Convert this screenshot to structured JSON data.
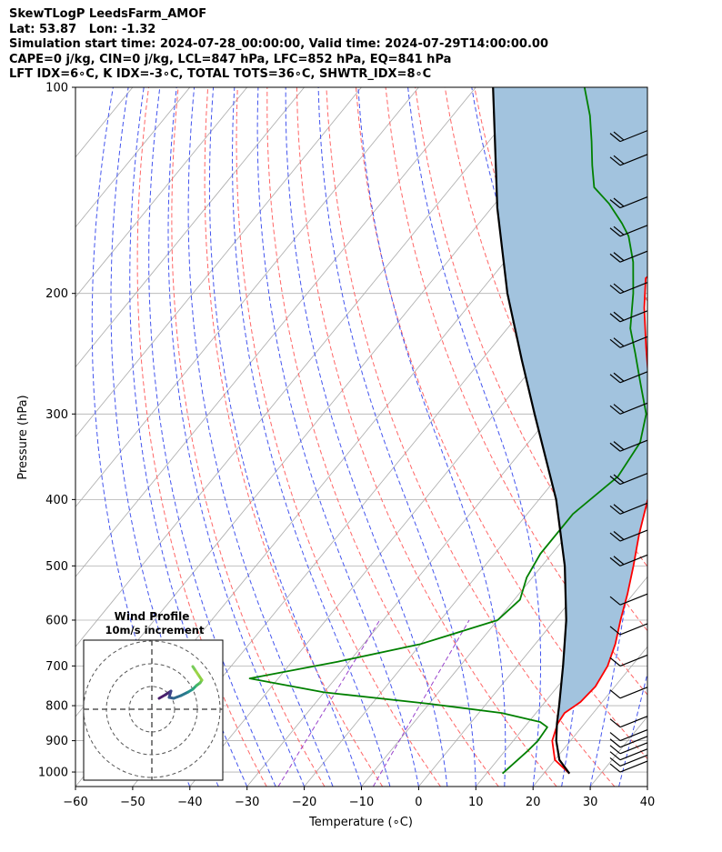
{
  "header": {
    "line1": "SkewTLogP LeedsFarm_AMOF",
    "line2": "Lat: 53.87   Lon: -1.32",
    "line3": "Simulation start time: 2024-07-28_00:00:00, Valid time: 2024-07-29T14:00:00.00",
    "line4": "CAPE=0 j/kg, CIN=0 j/kg, LCL=847 hPa, LFC=852 hPa, EQ=841 hPa",
    "line5": "LFT IDX=6∘C, K IDX=-3∘C, TOTAL TOTS=36∘C, SHWTR_IDX=8∘C"
  },
  "chart_data": {
    "type": "skew-t log-p",
    "xlabel": "Temperature (∘C)",
    "ylabel": "Pressure (hPa)",
    "xlim": [
      -60,
      40
    ],
    "ylim": [
      1050,
      100
    ],
    "y_scale": "log",
    "grid": true,
    "x_ticks": [
      -60,
      -50,
      -40,
      -30,
      -20,
      -10,
      0,
      10,
      20,
      30,
      40
    ],
    "y_ticks": [
      100,
      200,
      300,
      400,
      500,
      600,
      700,
      800,
      900,
      1000
    ],
    "temperature": [
      [
        1005,
        24.5
      ],
      [
        960,
        20.0
      ],
      [
        900,
        16.8
      ],
      [
        850,
        15.3
      ],
      [
        820,
        15.0
      ],
      [
        790,
        16.2
      ],
      [
        750,
        16.6
      ],
      [
        700,
        15.8
      ],
      [
        650,
        14.0
      ],
      [
        600,
        11.5
      ],
      [
        550,
        9.0
      ],
      [
        500,
        6.0
      ],
      [
        450,
        2.5
      ],
      [
        400,
        -1.0
      ],
      [
        350,
        -5.5
      ],
      [
        310,
        -9.5
      ],
      [
        290,
        -13.5
      ],
      [
        270,
        -17.5
      ],
      [
        240,
        -23.0
      ],
      [
        210,
        -29.0
      ],
      [
        190,
        -33.0
      ],
      [
        175,
        -31.0
      ],
      [
        160,
        -31.5
      ],
      [
        150,
        -33.0
      ],
      [
        138,
        -33.5
      ],
      [
        125,
        -35.0
      ],
      [
        117,
        -37.0
      ],
      [
        110,
        -38.0
      ],
      [
        105,
        -38.0
      ],
      [
        100,
        -38.0
      ]
    ],
    "dewpoint": [
      [
        1005,
        12.8
      ],
      [
        930,
        14.0
      ],
      [
        900,
        14.3
      ],
      [
        860,
        14.0
      ],
      [
        845,
        12.0
      ],
      [
        820,
        4.0
      ],
      [
        795,
        -10.0
      ],
      [
        765,
        -30.0
      ],
      [
        730,
        -45.0
      ],
      [
        690,
        -32.0
      ],
      [
        650,
        -20.0
      ],
      [
        600,
        -10.0
      ],
      [
        560,
        -9.0
      ],
      [
        520,
        -11.0
      ],
      [
        480,
        -12.0
      ],
      [
        420,
        -12.0
      ],
      [
        370,
        -9.5
      ],
      [
        330,
        -10.5
      ],
      [
        300,
        -13.5
      ],
      [
        270,
        -19.0
      ],
      [
        245,
        -24.0
      ],
      [
        225,
        -28.5
      ],
      [
        200,
        -33.0
      ],
      [
        180,
        -37.5
      ],
      [
        165,
        -42.0
      ],
      [
        158,
        -45.0
      ],
      [
        148,
        -50.0
      ],
      [
        140,
        -55.0
      ],
      [
        130,
        -58.5
      ],
      [
        120,
        -62.0
      ],
      [
        110,
        -66.0
      ],
      [
        100,
        -71.0
      ]
    ],
    "parcel": [
      [
        1005,
        24.5
      ],
      [
        960,
        20.8
      ],
      [
        900,
        17.5
      ],
      [
        850,
        15.2
      ],
      [
        800,
        13.0
      ],
      [
        700,
        8.0
      ],
      [
        600,
        2.0
      ],
      [
        500,
        -6.0
      ],
      [
        400,
        -17.0
      ],
      [
        300,
        -33.0
      ],
      [
        250,
        -43.0
      ],
      [
        200,
        -55.0
      ],
      [
        150,
        -69.0
      ],
      [
        100,
        -87.0
      ]
    ],
    "wind_barbs": {
      "pressures": [
        1000,
        980,
        960,
        940,
        920,
        900,
        860,
        780,
        700,
        630,
        570,
        500,
        460,
        420,
        380,
        340,
        300,
        270,
        240,
        220,
        200,
        180,
        165,
        150,
        130,
        120
      ],
      "speeds_kt": [
        10,
        10,
        10,
        10,
        10,
        10,
        10,
        10,
        10,
        10,
        10,
        15,
        15,
        15,
        15,
        15,
        15,
        15,
        20,
        20,
        20,
        20,
        20,
        20,
        20,
        20
      ]
    },
    "hodograph": {
      "title": "Wind Profile",
      "subtitle": "10m/s increment",
      "rings": [
        10,
        20,
        30
      ]
    }
  },
  "colors": {
    "temperature": "#ff0000",
    "dewpoint": "#008000",
    "parcel": "#000000",
    "cape_fill": "#a2c3de",
    "dry_adiabat": "#ff6666",
    "moist_adiabat": "#4455ee",
    "mixing_ratio": "#9944cc",
    "isotherm": "#aaaaaa"
  }
}
